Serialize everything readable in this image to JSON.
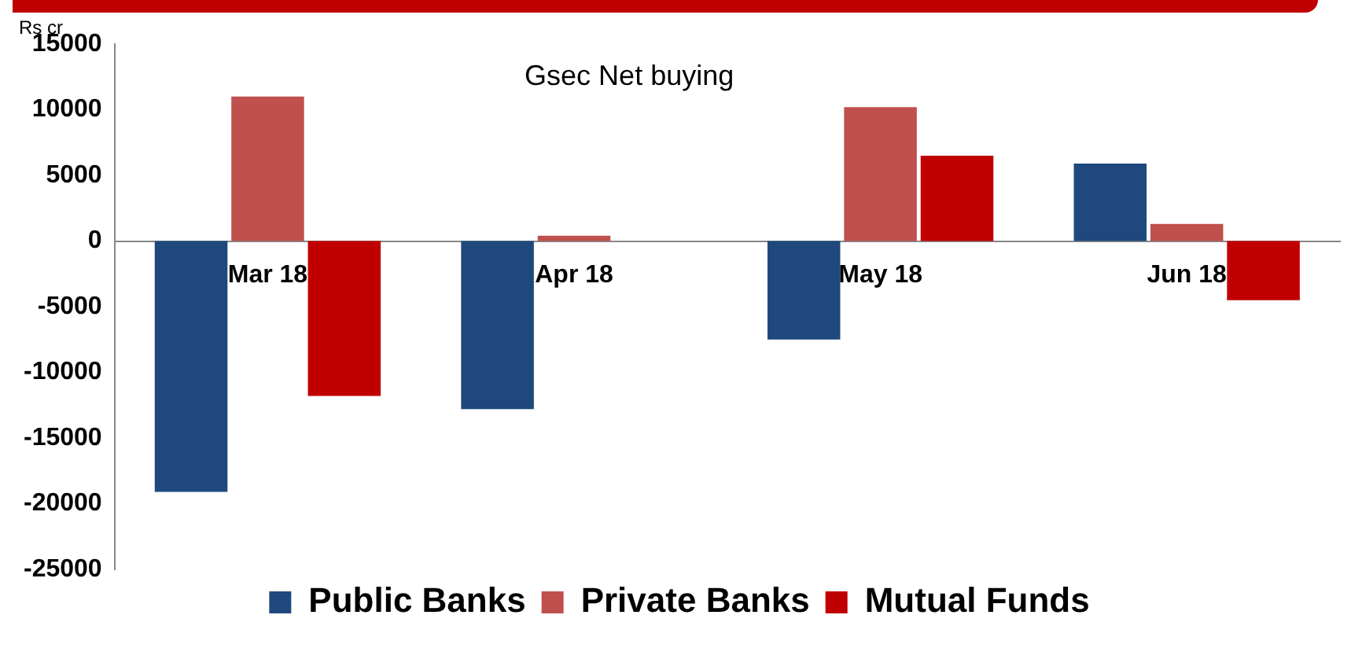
{
  "chart_data": {
    "type": "bar",
    "title": "Gsec Net buying",
    "ylabel": "Rs cr",
    "categories": [
      "Mar 18",
      "Apr 18",
      "May 18",
      "Jun 18"
    ],
    "series": [
      {
        "name": "Public Banks",
        "color": "#1f497d",
        "values": [
          -19100,
          -12800,
          -7500,
          5900
        ]
      },
      {
        "name": "Private Banks",
        "color": "#c0504d",
        "values": [
          11000,
          400,
          10200,
          1300
        ]
      },
      {
        "name": "Mutual Funds",
        "color": "#c00000",
        "values": [
          -11800,
          0,
          6500,
          -4500
        ]
      }
    ],
    "ylim": [
      -25000,
      15000
    ],
    "yticks": [
      -25000,
      -20000,
      -15000,
      -10000,
      -5000,
      0,
      5000,
      10000,
      15000
    ],
    "grid": false,
    "legend": "bottom"
  }
}
